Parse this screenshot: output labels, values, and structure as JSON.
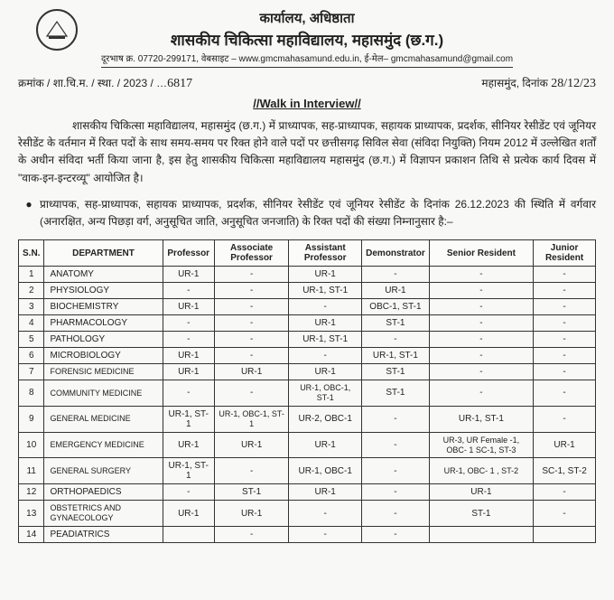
{
  "letterhead": {
    "office": "कार्यालय, अधिष्ठाता",
    "college": "शासकीय चिकित्सा महाविद्यालय, महासमुंद (छ.ग.)",
    "contact": "दूरभाष क्र. 07720-299171, वेबसाइट – www.gmcmahasamund.edu.in, ई-मेल– gmcmahasamund@gmail.com"
  },
  "ref": {
    "prefix": "क्रमांक / शा.चि.म. / स्था. / 2023 / …",
    "number": "6817",
    "place": "महासमुंद, दिनांक",
    "date": "28/12/23"
  },
  "title": "//Walk in Interview//",
  "para": "शासकीय चिकित्सा महाविद्यालय, महासमुंद (छ.ग.) में प्राध्यापक, सह-प्राध्यापक, सहायक प्राध्यापक, प्रदर्शक, सीनियर रेसीडेंट एवं जूनियर रेसीडेंट के वर्तमान में रिक्त पदों के साथ समय-समय पर रिक्त होने वाले पदों पर छत्तीसगढ़ सिविल सेवा (संविदा नियुक्ति) नियम 2012 में उल्लेखित शर्तों के अधीन संविदा भर्ती किया जाना है, इस हेतु शासकीय चिकित्सा महाविद्यालय महासमुंद (छ.ग.) में विज्ञापन प्रकाशन तिथि से प्रत्येक कार्य दिवस में \"वाक-इन-इन्टरव्यू\" आयोजित है।",
  "bullet": "प्राध्यापक, सह-प्राध्यापक, सहायक प्राध्यापक, प्रदर्शक, सीनियर रेसीडेंट एवं जूनियर रेसीडेंट के दिनांक 26.12.2023 की स्थिति में वर्गवार (अनारक्षित, अन्य पिछड़ा वर्ग, अनुसूचित जाति, अनुसूचित जनजाति) के रिक्त पदों की संख्या निम्नानुसार है:–",
  "headers": {
    "sn": "S.N.",
    "dept": "DEPARTMENT",
    "prof": "Professor",
    "assoc": "Associate Professor",
    "asst": "Assistant Professor",
    "demo": "Demonstrator",
    "sr": "Senior Resident",
    "jr": "Junior Resident"
  },
  "rows": [
    {
      "sn": "1",
      "dept": "ANATOMY",
      "prof": "UR-1",
      "assoc": "-",
      "asst": "UR-1",
      "demo": "-",
      "sr": "-",
      "jr": "-"
    },
    {
      "sn": "2",
      "dept": "PHYSIOLOGY",
      "prof": "-",
      "assoc": "-",
      "asst": "UR-1, ST-1",
      "demo": "UR-1",
      "sr": "-",
      "jr": "-"
    },
    {
      "sn": "3",
      "dept": "BIOCHEMISTRY",
      "prof": "UR-1",
      "assoc": "-",
      "asst": "-",
      "demo": "OBC-1, ST-1",
      "sr": "-",
      "jr": "-"
    },
    {
      "sn": "4",
      "dept": "PHARMACOLOGY",
      "prof": "-",
      "assoc": "-",
      "asst": "UR-1",
      "demo": "ST-1",
      "sr": "-",
      "jr": "-"
    },
    {
      "sn": "5",
      "dept": "PATHOLOGY",
      "prof": "-",
      "assoc": "-",
      "asst": "UR-1, ST-1",
      "demo": "-",
      "sr": "-",
      "jr": "-"
    },
    {
      "sn": "6",
      "dept": "MICROBIOLOGY",
      "prof": "UR-1",
      "assoc": "-",
      "asst": "-",
      "demo": "UR-1, ST-1",
      "sr": "-",
      "jr": "-"
    },
    {
      "sn": "7",
      "dept": "FORENSIC MEDICINE",
      "prof": "UR-1",
      "assoc": "UR-1",
      "asst": "UR-1",
      "demo": "ST-1",
      "sr": "-",
      "jr": "-"
    },
    {
      "sn": "8",
      "dept": "COMMUNITY MEDICINE",
      "prof": "-",
      "assoc": "-",
      "asst": "UR-1, OBC-1, ST-1",
      "demo": "ST-1",
      "sr": "-",
      "jr": "-"
    },
    {
      "sn": "9",
      "dept": "GENERAL MEDICINE",
      "prof": "UR-1, ST-1",
      "assoc": "UR-1, OBC-1, ST-1",
      "asst": "UR-2, OBC-1",
      "demo": "-",
      "sr": "UR-1, ST-1",
      "jr": "-"
    },
    {
      "sn": "10",
      "dept": "EMERGENCY MEDICINE",
      "prof": "UR-1",
      "assoc": "UR-1",
      "asst": "UR-1",
      "demo": "-",
      "sr": "UR-3, UR Female -1, OBC- 1 SC-1, ST-3",
      "jr": "UR-1"
    },
    {
      "sn": "11",
      "dept": "GENERAL SURGERY",
      "prof": "UR-1, ST-1",
      "assoc": "-",
      "asst": "UR-1, OBC-1",
      "demo": "-",
      "sr": "UR-1, OBC- 1 , ST-2",
      "jr": "SC-1, ST-2"
    },
    {
      "sn": "12",
      "dept": "ORTHOPAEDICS",
      "prof": "-",
      "assoc": "ST-1",
      "asst": "UR-1",
      "demo": "-",
      "sr": "UR-1",
      "jr": "-"
    },
    {
      "sn": "13",
      "dept": "OBSTETRICS AND GYNAECOLOGY",
      "prof": "UR-1",
      "assoc": "UR-1",
      "asst": "-",
      "demo": "-",
      "sr": "ST-1",
      "jr": "-"
    },
    {
      "sn": "14",
      "dept": "PEADIATRICS",
      "prof": "",
      "assoc": "-",
      "asst": "-",
      "demo": "-",
      "sr": "",
      "jr": ""
    }
  ]
}
